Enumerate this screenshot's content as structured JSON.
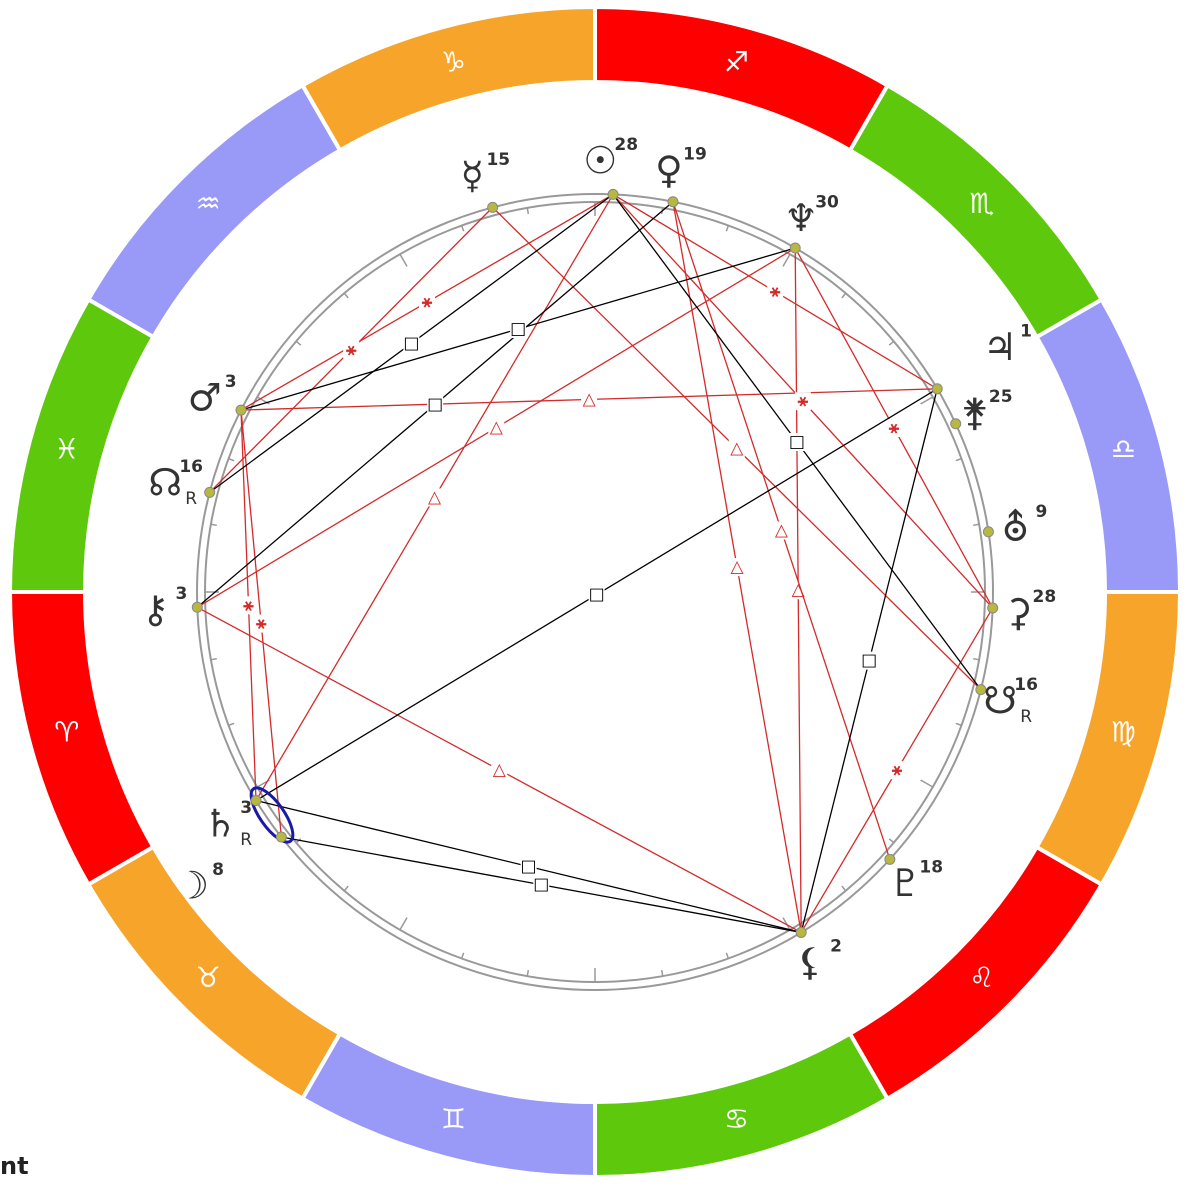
{
  "signs": [
    {
      "glyph": "♑",
      "color": "#f7a52a"
    },
    {
      "glyph": "♒",
      "color": "#9999f8"
    },
    {
      "glyph": "♓",
      "color": "#5ec80c"
    },
    {
      "glyph": "♈",
      "color": "#ff0000"
    },
    {
      "glyph": "♉",
      "color": "#f7a52a"
    },
    {
      "glyph": "♊",
      "color": "#9999f8"
    },
    {
      "glyph": "♋",
      "color": "#5ec80c"
    },
    {
      "glyph": "♌",
      "color": "#ff0000"
    },
    {
      "glyph": "♍",
      "color": "#f7a52a"
    },
    {
      "glyph": "♎",
      "color": "#9999f8"
    },
    {
      "glyph": "♏",
      "color": "#5ec80c"
    },
    {
      "glyph": "♐",
      "color": "#ff0000"
    }
  ],
  "planets": [
    {
      "glyph": "☿",
      "degree": 15
    },
    {
      "glyph": "☉",
      "degree": 28
    },
    {
      "glyph": "♀",
      "degree": 19
    },
    {
      "glyph": "♆",
      "degree": 30
    },
    {
      "glyph": "♃",
      "degree": 1
    },
    {
      "glyph": "⚵",
      "degree": 25
    },
    {
      "glyph": "⛢",
      "degree": 9
    },
    {
      "glyph": "⚳",
      "degree": 28
    },
    {
      "glyph": "☋",
      "degree": 16,
      "retrograde": "R"
    },
    {
      "glyph": "♇",
      "degree": 18
    },
    {
      "glyph": "⚸",
      "degree": 2
    },
    {
      "glyph": "♄",
      "degree": 3,
      "retrograde": "R"
    },
    {
      "glyph": "☽",
      "degree": 8
    },
    {
      "glyph": "⚷",
      "degree": 3
    },
    {
      "glyph": "☊",
      "degree": 16,
      "retrograde": "R"
    },
    {
      "glyph": "♂",
      "degree": 3
    }
  ],
  "aspects": [
    {
      "from": 1,
      "to": 15,
      "symbol": "⚹",
      "color": "#d42a2a"
    },
    {
      "from": 0,
      "to": 14,
      "symbol": "⚹",
      "color": "#d42a2a"
    },
    {
      "from": 15,
      "to": 4,
      "symbol": "△",
      "color": "#d42a2a"
    },
    {
      "from": 1,
      "to": 11,
      "symbol": "△",
      "color": "#d42a2a"
    },
    {
      "from": 3,
      "to": 13,
      "symbol": "△",
      "color": "#d42a2a"
    },
    {
      "from": 0,
      "to": 8,
      "symbol": "△",
      "color": "#d42a2a"
    },
    {
      "from": 2,
      "to": 10,
      "symbol": "△",
      "color": "#d42a2a"
    },
    {
      "from": 3,
      "to": 10,
      "symbol": "△",
      "color": "#d42a2a"
    },
    {
      "from": 13,
      "to": 10,
      "symbol": "△",
      "color": "#d42a2a"
    },
    {
      "from": 1,
      "to": 7,
      "symbol": "⚹",
      "color": "#d42a2a"
    },
    {
      "from": 1,
      "to": 4,
      "symbol": "⚹",
      "color": "#d42a2a"
    },
    {
      "from": 3,
      "to": 7,
      "symbol": "⚹",
      "color": "#d42a2a"
    },
    {
      "from": 2,
      "to": 9,
      "symbol": "△",
      "color": "#d42a2a"
    },
    {
      "from": 15,
      "to": 11,
      "symbol": "⚹",
      "color": "#d42a2a"
    },
    {
      "from": 15,
      "to": 12,
      "symbol": "⚹",
      "color": "#d42a2a"
    },
    {
      "from": 7,
      "to": 10,
      "symbol": "⚹",
      "color": "#d42a2a"
    },
    {
      "from": 4,
      "to": 10,
      "symbol": "□",
      "color": "#000000"
    },
    {
      "from": 4,
      "to": 11,
      "symbol": "□",
      "color": "#000000"
    },
    {
      "from": 2,
      "to": 13,
      "symbol": "□",
      "color": "#000000"
    },
    {
      "from": 1,
      "to": 8,
      "symbol": "□",
      "color": "#000000"
    },
    {
      "from": 3,
      "to": 15,
      "symbol": "□",
      "color": "#000000"
    },
    {
      "from": 1,
      "to": 14,
      "symbol": "□",
      "color": "#000000"
    },
    {
      "from": 11,
      "to": 10,
      "symbol": "□",
      "color": "#000000"
    },
    {
      "from": 12,
      "to": 10,
      "symbol": "□",
      "color": "#000000"
    }
  ],
  "footer": "nt"
}
